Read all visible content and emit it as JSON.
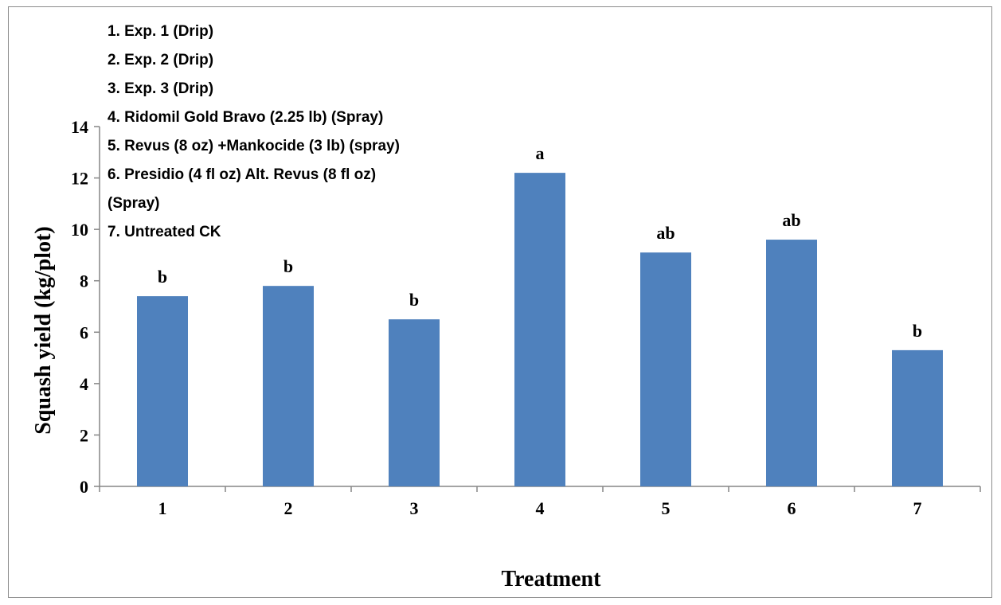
{
  "chart_data": {
    "type": "bar",
    "categories": [
      "1",
      "2",
      "3",
      "4",
      "5",
      "6",
      "7"
    ],
    "values": [
      7.4,
      7.8,
      6.5,
      12.2,
      9.1,
      9.6,
      5.3
    ],
    "data_labels": [
      "b",
      "b",
      "b",
      "a",
      "ab",
      "ab",
      "b"
    ],
    "xlabel": "Treatment",
    "ylabel": "Squash yield (kg/plot)",
    "ylim": [
      0,
      14
    ],
    "yticks": [
      0,
      2,
      4,
      6,
      8,
      10,
      12,
      14
    ],
    "grid": false,
    "bar_color": "#4f81bd",
    "annotation_lines": [
      "1. Exp. 1 (Drip)",
      "2. Exp. 2 (Drip)",
      "3. Exp. 3 (Drip)",
      "4. Ridomil Gold Bravo (2.25 lb) (Spray)",
      "5. Revus (8 oz) +Mankocide (3 lb) (spray)",
      "6. Presidio  (4 fl oz) Alt. Revus  (8 fl oz)",
      "(Spray)",
      "7. Untreated CK"
    ],
    "annotation_placement": "top-left"
  }
}
